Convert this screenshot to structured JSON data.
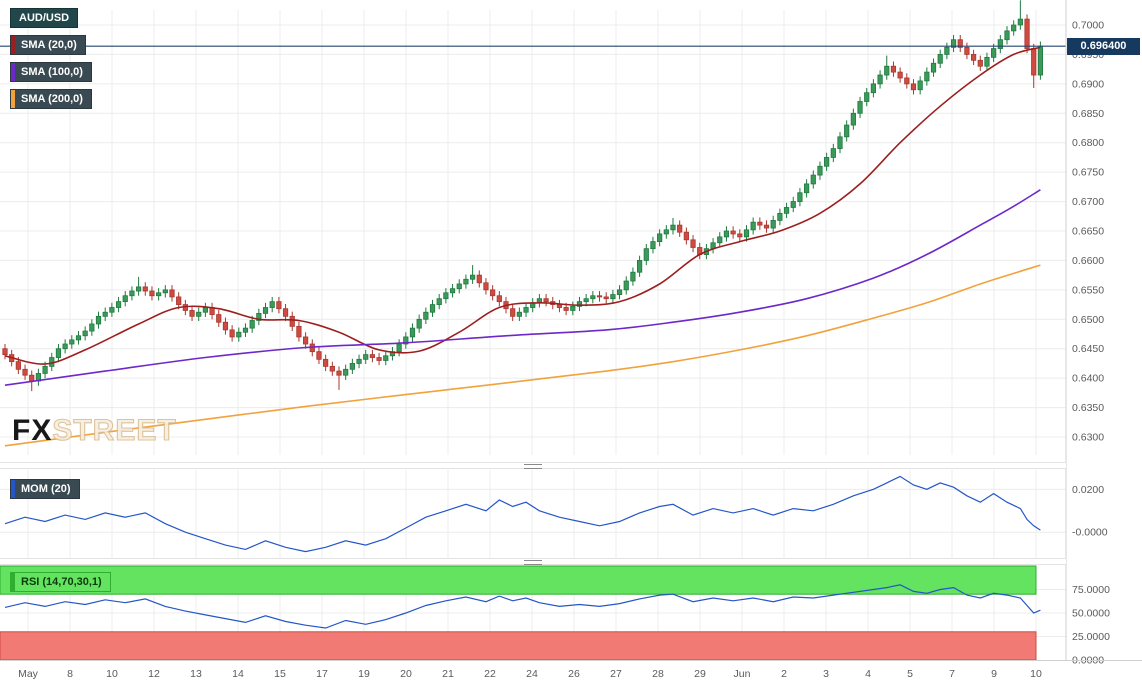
{
  "legend": {
    "symbol": "AUD/USD"
  },
  "watermark": {
    "fx": "FX",
    "street": "STREET"
  },
  "price_axis": {
    "current_price_label": "0.696400",
    "ticks": [
      "0.7000",
      "0.6950",
      "0.6900",
      "0.6850",
      "0.6800",
      "0.6750",
      "0.6700",
      "0.6650",
      "0.6600",
      "0.6550",
      "0.6500",
      "0.6450",
      "0.6400",
      "0.6350",
      "0.6300"
    ]
  },
  "x_axis": {
    "labels": [
      "May",
      "8",
      "10",
      "12",
      "13",
      "14",
      "15",
      "17",
      "19",
      "20",
      "21",
      "22",
      "24",
      "26",
      "27",
      "28",
      "29",
      "Jun",
      "2",
      "3",
      "4",
      "5",
      "7",
      "9",
      "10"
    ]
  },
  "colors": {
    "up": "#3b9a5a",
    "up_border": "#1f7a40",
    "down": "#cf4b42",
    "down_border": "#a8372f",
    "price_line": "#23466e",
    "badge_bg": "#16395f",
    "badge_text": "#ffffff",
    "grid": "#ececec",
    "axis_line": "#cfcfcf",
    "axis_text": "#5a5a5a",
    "rsi_overbought_fill": "#63e35f",
    "rsi_overbought_border": "#2fae2f",
    "rsi_oversold_fill": "#f17b74",
    "rsi_oversold_border": "#cf4b42",
    "logo": "#d9bd93"
  },
  "chart_data": {
    "type": "candlestick",
    "symbol_label": "AUD/USD",
    "current_price": 0.6964,
    "price_range": [
      0.63,
      0.7
    ],
    "price_tick_step": 0.005,
    "candles": {
      "first_open": 0.645,
      "default_wick": 0.0008,
      "closes": [
        0.644,
        0.6428,
        0.6415,
        0.6405,
        0.6395,
        0.6408,
        0.642,
        0.6435,
        0.645,
        0.6458,
        0.6465,
        0.6472,
        0.648,
        0.6492,
        0.6505,
        0.6512,
        0.652,
        0.653,
        0.654,
        0.6548,
        0.6555,
        0.6548,
        0.654,
        0.6545,
        0.655,
        0.6538,
        0.6525,
        0.6515,
        0.6505,
        0.6512,
        0.652,
        0.6508,
        0.6495,
        0.6482,
        0.647,
        0.6478,
        0.6485,
        0.6498,
        0.651,
        0.652,
        0.653,
        0.6518,
        0.6505,
        0.6488,
        0.647,
        0.6458,
        0.6445,
        0.6432,
        0.642,
        0.6412,
        0.6405,
        0.6415,
        0.6425,
        0.6432,
        0.644,
        0.6435,
        0.643,
        0.6438,
        0.6445,
        0.6458,
        0.647,
        0.6485,
        0.65,
        0.6512,
        0.6525,
        0.6535,
        0.6545,
        0.6552,
        0.656,
        0.6568,
        0.6575,
        0.6562,
        0.655,
        0.654,
        0.653,
        0.6518,
        0.6505,
        0.6512,
        0.652,
        0.6528,
        0.6535,
        0.653,
        0.6525,
        0.652,
        0.6515,
        0.6522,
        0.653,
        0.6535,
        0.654,
        0.6538,
        0.6535,
        0.6542,
        0.655,
        0.6565,
        0.658,
        0.66,
        0.662,
        0.6632,
        0.6645,
        0.6652,
        0.666,
        0.6648,
        0.6635,
        0.6622,
        0.661,
        0.662,
        0.663,
        0.664,
        0.665,
        0.6645,
        0.664,
        0.6652,
        0.6665,
        0.666,
        0.6655,
        0.6668,
        0.668,
        0.669,
        0.67,
        0.6715,
        0.673,
        0.6745,
        0.676,
        0.6775,
        0.679,
        0.681,
        0.683,
        0.685,
        0.687,
        0.6885,
        0.69,
        0.6915,
        0.693,
        0.692,
        0.691,
        0.69,
        0.689,
        0.6905,
        0.692,
        0.6935,
        0.695,
        0.6962,
        0.6975,
        0.6962,
        0.695,
        0.694,
        0.693,
        0.6945,
        0.696,
        0.6975,
        0.699,
        0.7,
        0.701,
        0.696,
        0.6915,
        0.6964
      ],
      "wick_overrides": {
        "4": {
          "low": 0.6378
        },
        "20": {
          "high": 0.6572
        },
        "50": {
          "low": 0.638
        },
        "70": {
          "high": 0.6592
        },
        "100": {
          "high": 0.6672
        },
        "132": {
          "high": 0.6948
        },
        "152": {
          "high": 0.7042
        },
        "154": {
          "low": 0.6893
        }
      }
    },
    "overlays": [
      {
        "name": "SMA (20,0)",
        "color": "#9c1f1f",
        "points": [
          [
            0,
            0.6438
          ],
          [
            6,
            0.6424
          ],
          [
            12,
            0.6448
          ],
          [
            20,
            0.6492
          ],
          [
            26,
            0.652
          ],
          [
            32,
            0.6518
          ],
          [
            38,
            0.65
          ],
          [
            44,
            0.6498
          ],
          [
            50,
            0.6478
          ],
          [
            56,
            0.6448
          ],
          [
            62,
            0.6446
          ],
          [
            68,
            0.6478
          ],
          [
            74,
            0.652
          ],
          [
            80,
            0.6528
          ],
          [
            86,
            0.6524
          ],
          [
            92,
            0.653
          ],
          [
            98,
            0.656
          ],
          [
            104,
            0.661
          ],
          [
            110,
            0.6632
          ],
          [
            116,
            0.665
          ],
          [
            122,
            0.668
          ],
          [
            128,
            0.673
          ],
          [
            134,
            0.68
          ],
          [
            140,
            0.6862
          ],
          [
            146,
            0.6915
          ],
          [
            151,
            0.695
          ],
          [
            155,
            0.6962
          ]
        ]
      },
      {
        "name": "SMA (100,0)",
        "color": "#6d28c9",
        "points": [
          [
            0,
            0.6388
          ],
          [
            15,
            0.6412
          ],
          [
            30,
            0.6435
          ],
          [
            45,
            0.6452
          ],
          [
            60,
            0.646
          ],
          [
            75,
            0.6472
          ],
          [
            90,
            0.6482
          ],
          [
            100,
            0.6495
          ],
          [
            110,
            0.6512
          ],
          [
            120,
            0.6535
          ],
          [
            130,
            0.657
          ],
          [
            138,
            0.661
          ],
          [
            146,
            0.666
          ],
          [
            151,
            0.6692
          ],
          [
            155,
            0.672
          ]
        ]
      },
      {
        "name": "SMA (200,0)",
        "color": "#f2a23c",
        "points": [
          [
            0,
            0.6285
          ],
          [
            15,
            0.6308
          ],
          [
            30,
            0.633
          ],
          [
            45,
            0.6352
          ],
          [
            60,
            0.6372
          ],
          [
            75,
            0.6392
          ],
          [
            90,
            0.6412
          ],
          [
            100,
            0.6428
          ],
          [
            110,
            0.6448
          ],
          [
            120,
            0.6472
          ],
          [
            130,
            0.6502
          ],
          [
            138,
            0.6528
          ],
          [
            146,
            0.656
          ],
          [
            151,
            0.6578
          ],
          [
            155,
            0.6592
          ]
        ]
      }
    ],
    "indicators": [
      {
        "name": "MOM (20)",
        "type": "line",
        "color": "#2456c8",
        "range": [
          -0.012,
          0.029
        ],
        "ticks": [
          {
            "label": "0.0200",
            "value": 0.02
          },
          {
            "label": "-0.0000",
            "value": 0
          }
        ],
        "points": [
          [
            0,
            0.004
          ],
          [
            3,
            0.007
          ],
          [
            6,
            0.005
          ],
          [
            9,
            0.008
          ],
          [
            12,
            0.006
          ],
          [
            15,
            0.009
          ],
          [
            18,
            0.007
          ],
          [
            21,
            0.009
          ],
          [
            24,
            0.004
          ],
          [
            27,
            0.0
          ],
          [
            30,
            -0.003
          ],
          [
            33,
            -0.006
          ],
          [
            36,
            -0.008
          ],
          [
            39,
            -0.004
          ],
          [
            42,
            -0.007
          ],
          [
            45,
            -0.009
          ],
          [
            48,
            -0.007
          ],
          [
            51,
            -0.004
          ],
          [
            54,
            -0.006
          ],
          [
            57,
            -0.003
          ],
          [
            60,
            0.002
          ],
          [
            63,
            0.007
          ],
          [
            66,
            0.01
          ],
          [
            69,
            0.013
          ],
          [
            72,
            0.01
          ],
          [
            74,
            0.015
          ],
          [
            76,
            0.012
          ],
          [
            78,
            0.014
          ],
          [
            80,
            0.01
          ],
          [
            83,
            0.007
          ],
          [
            86,
            0.005
          ],
          [
            89,
            0.003
          ],
          [
            92,
            0.005
          ],
          [
            95,
            0.009
          ],
          [
            98,
            0.012
          ],
          [
            100,
            0.013
          ],
          [
            103,
            0.008
          ],
          [
            106,
            0.011
          ],
          [
            109,
            0.009
          ],
          [
            112,
            0.011
          ],
          [
            115,
            0.008
          ],
          [
            118,
            0.011
          ],
          [
            121,
            0.01
          ],
          [
            124,
            0.013
          ],
          [
            127,
            0.017
          ],
          [
            130,
            0.02
          ],
          [
            132,
            0.023
          ],
          [
            134,
            0.026
          ],
          [
            136,
            0.022
          ],
          [
            138,
            0.02
          ],
          [
            140,
            0.023
          ],
          [
            142,
            0.021
          ],
          [
            144,
            0.017
          ],
          [
            146,
            0.014
          ],
          [
            148,
            0.018
          ],
          [
            150,
            0.014
          ],
          [
            152,
            0.011
          ],
          [
            153,
            0.006
          ],
          [
            154,
            0.003
          ],
          [
            155,
            0.001
          ]
        ]
      },
      {
        "name": "RSI (14,70,30,1)",
        "type": "line",
        "color": "#2456c8",
        "range": [
          0,
          100
        ],
        "overbought": 70,
        "oversold": 30,
        "ticks": [
          {
            "label": "75.0000",
            "value": 75
          },
          {
            "label": "50.0000",
            "value": 50
          },
          {
            "label": "25.0000",
            "value": 25
          },
          {
            "label": "0.0000",
            "value": 0
          }
        ],
        "points": [
          [
            0,
            56
          ],
          [
            3,
            61
          ],
          [
            6,
            57
          ],
          [
            9,
            62
          ],
          [
            12,
            59
          ],
          [
            15,
            64
          ],
          [
            18,
            61
          ],
          [
            21,
            65
          ],
          [
            24,
            57
          ],
          [
            27,
            52
          ],
          [
            30,
            48
          ],
          [
            33,
            44
          ],
          [
            36,
            40
          ],
          [
            39,
            47
          ],
          [
            42,
            41
          ],
          [
            45,
            37
          ],
          [
            48,
            34
          ],
          [
            51,
            42
          ],
          [
            54,
            38
          ],
          [
            57,
            43
          ],
          [
            60,
            50
          ],
          [
            63,
            58
          ],
          [
            66,
            63
          ],
          [
            69,
            67
          ],
          [
            72,
            62
          ],
          [
            74,
            68
          ],
          [
            76,
            63
          ],
          [
            78,
            66
          ],
          [
            80,
            61
          ],
          [
            83,
            57
          ],
          [
            86,
            59
          ],
          [
            89,
            57
          ],
          [
            92,
            60
          ],
          [
            95,
            65
          ],
          [
            98,
            69
          ],
          [
            100,
            70
          ],
          [
            103,
            62
          ],
          [
            106,
            66
          ],
          [
            109,
            63
          ],
          [
            112,
            66
          ],
          [
            115,
            62
          ],
          [
            118,
            67
          ],
          [
            121,
            66
          ],
          [
            124,
            69
          ],
          [
            127,
            72
          ],
          [
            130,
            75
          ],
          [
            132,
            77
          ],
          [
            134,
            80
          ],
          [
            136,
            73
          ],
          [
            138,
            71
          ],
          [
            140,
            75
          ],
          [
            142,
            77
          ],
          [
            144,
            69
          ],
          [
            146,
            66
          ],
          [
            148,
            71
          ],
          [
            150,
            69
          ],
          [
            152,
            66
          ],
          [
            153,
            58
          ],
          [
            154,
            50
          ],
          [
            155,
            53
          ]
        ]
      }
    ]
  }
}
